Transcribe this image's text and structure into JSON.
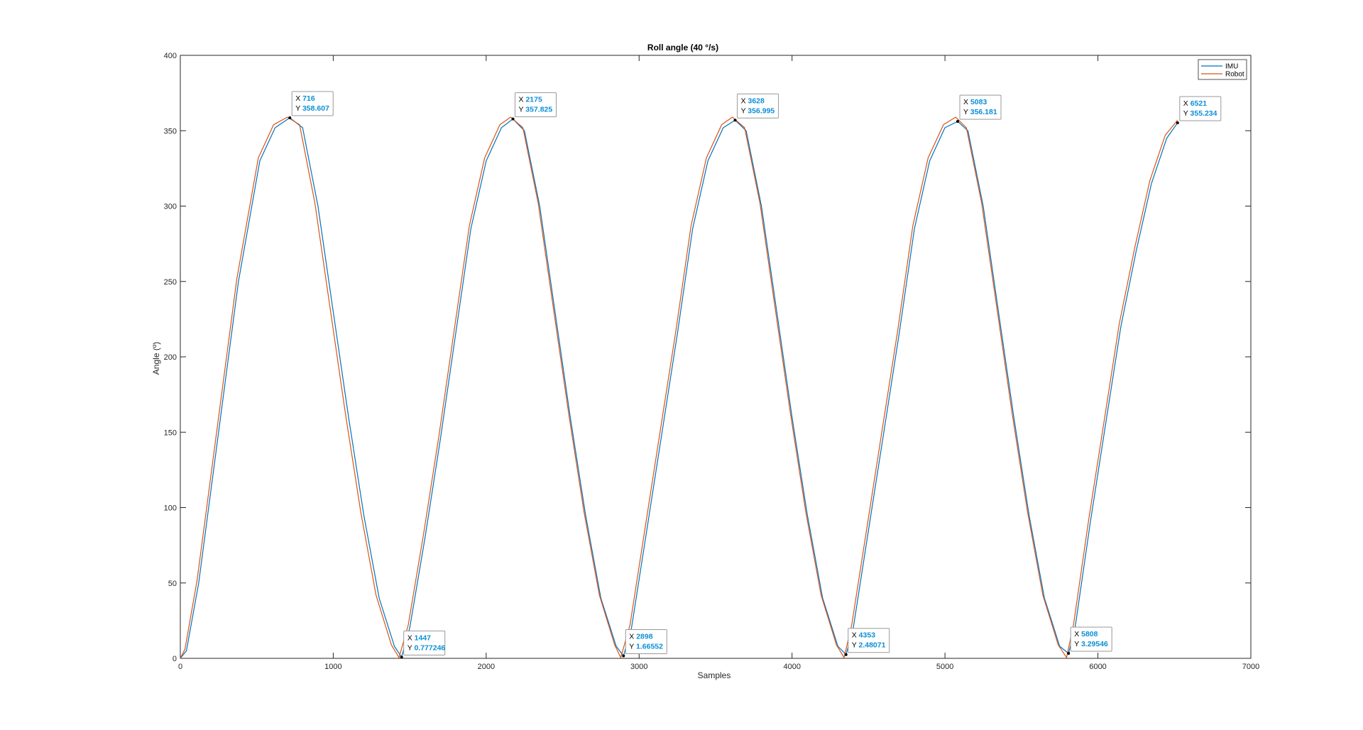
{
  "chart_data": {
    "type": "line",
    "title": "Roll angle (40 °/s)",
    "xlabel": "Samples",
    "ylabel": "Angle (º)",
    "xlim": [
      0,
      7000
    ],
    "ylim": [
      0,
      400
    ],
    "xticks": [
      0,
      1000,
      2000,
      3000,
      4000,
      5000,
      6000,
      7000
    ],
    "yticks": [
      0,
      50,
      100,
      150,
      200,
      250,
      300,
      350,
      400
    ],
    "grid": false,
    "legend_position": "top-right",
    "series": [
      {
        "name": "IMU",
        "color": "#0072BD",
        "points": [
          [
            0,
            0
          ],
          [
            40,
            5
          ],
          [
            120,
            50
          ],
          [
            250,
            150
          ],
          [
            380,
            250
          ],
          [
            520,
            330
          ],
          [
            620,
            352
          ],
          [
            716,
            358.6
          ],
          [
            800,
            352
          ],
          [
            900,
            300
          ],
          [
            1000,
            230
          ],
          [
            1100,
            160
          ],
          [
            1200,
            95
          ],
          [
            1300,
            40
          ],
          [
            1400,
            8
          ],
          [
            1447,
            0.78
          ],
          [
            1500,
            20
          ],
          [
            1600,
            80
          ],
          [
            1700,
            145
          ],
          [
            1800,
            215
          ],
          [
            1900,
            285
          ],
          [
            2000,
            330
          ],
          [
            2100,
            352
          ],
          [
            2175,
            357.8
          ],
          [
            2250,
            350
          ],
          [
            2350,
            300
          ],
          [
            2450,
            230
          ],
          [
            2550,
            160
          ],
          [
            2650,
            95
          ],
          [
            2750,
            40
          ],
          [
            2850,
            8
          ],
          [
            2898,
            1.67
          ],
          [
            2950,
            20
          ],
          [
            3050,
            85
          ],
          [
            3150,
            150
          ],
          [
            3250,
            215
          ],
          [
            3350,
            285
          ],
          [
            3450,
            330
          ],
          [
            3550,
            352
          ],
          [
            3628,
            357
          ],
          [
            3700,
            350
          ],
          [
            3800,
            300
          ],
          [
            3900,
            230
          ],
          [
            4000,
            160
          ],
          [
            4100,
            95
          ],
          [
            4200,
            40
          ],
          [
            4300,
            8
          ],
          [
            4353,
            2.48
          ],
          [
            4400,
            20
          ],
          [
            4500,
            85
          ],
          [
            4600,
            150
          ],
          [
            4700,
            215
          ],
          [
            4800,
            285
          ],
          [
            4900,
            330
          ],
          [
            5000,
            352
          ],
          [
            5083,
            356.2
          ],
          [
            5150,
            350
          ],
          [
            5250,
            300
          ],
          [
            5350,
            230
          ],
          [
            5450,
            160
          ],
          [
            5550,
            95
          ],
          [
            5650,
            40
          ],
          [
            5750,
            8
          ],
          [
            5808,
            3.3
          ],
          [
            5850,
            20
          ],
          [
            5950,
            90
          ],
          [
            6050,
            155
          ],
          [
            6150,
            220
          ],
          [
            6250,
            270
          ],
          [
            6350,
            315
          ],
          [
            6450,
            345
          ],
          [
            6521,
            355.2
          ]
        ]
      },
      {
        "name": "Robot",
        "color": "#D95319",
        "points": [
          [
            0,
            0
          ],
          [
            30,
            6
          ],
          [
            110,
            52
          ],
          [
            240,
            152
          ],
          [
            370,
            252
          ],
          [
            510,
            332
          ],
          [
            610,
            354
          ],
          [
            700,
            359
          ],
          [
            780,
            354
          ],
          [
            880,
            302
          ],
          [
            980,
            232
          ],
          [
            1080,
            162
          ],
          [
            1180,
            97
          ],
          [
            1280,
            42
          ],
          [
            1380,
            9
          ],
          [
            1430,
            0.5
          ],
          [
            1490,
            22
          ],
          [
            1590,
            82
          ],
          [
            1690,
            147
          ],
          [
            1790,
            217
          ],
          [
            1890,
            287
          ],
          [
            1990,
            332
          ],
          [
            2090,
            354
          ],
          [
            2160,
            359
          ],
          [
            2240,
            352
          ],
          [
            2340,
            302
          ],
          [
            2440,
            232
          ],
          [
            2540,
            162
          ],
          [
            2640,
            97
          ],
          [
            2740,
            42
          ],
          [
            2840,
            9
          ],
          [
            2880,
            0.5
          ],
          [
            2940,
            22
          ],
          [
            3040,
            87
          ],
          [
            3140,
            152
          ],
          [
            3240,
            217
          ],
          [
            3340,
            287
          ],
          [
            3440,
            332
          ],
          [
            3540,
            354
          ],
          [
            3610,
            359
          ],
          [
            3690,
            352
          ],
          [
            3790,
            302
          ],
          [
            3890,
            232
          ],
          [
            3990,
            162
          ],
          [
            4090,
            97
          ],
          [
            4190,
            42
          ],
          [
            4290,
            9
          ],
          [
            4340,
            0.5
          ],
          [
            4390,
            22
          ],
          [
            4490,
            87
          ],
          [
            4590,
            152
          ],
          [
            4690,
            217
          ],
          [
            4790,
            287
          ],
          [
            4890,
            332
          ],
          [
            4990,
            354
          ],
          [
            5070,
            359
          ],
          [
            5140,
            352
          ],
          [
            5240,
            302
          ],
          [
            5340,
            232
          ],
          [
            5440,
            162
          ],
          [
            5540,
            97
          ],
          [
            5640,
            42
          ],
          [
            5740,
            9
          ],
          [
            5795,
            0.5
          ],
          [
            5840,
            22
          ],
          [
            5940,
            92
          ],
          [
            6040,
            157
          ],
          [
            6140,
            222
          ],
          [
            6240,
            272
          ],
          [
            6340,
            317
          ],
          [
            6440,
            347
          ],
          [
            6521,
            357
          ]
        ]
      }
    ],
    "datatips": [
      {
        "x": 716,
        "y": 358.607
      },
      {
        "x": 1447,
        "y": 0.777246
      },
      {
        "x": 2175,
        "y": 357.825
      },
      {
        "x": 2898,
        "y": 1.66552
      },
      {
        "x": 3628,
        "y": 356.995
      },
      {
        "x": 4353,
        "y": 2.48071
      },
      {
        "x": 5083,
        "y": 356.181
      },
      {
        "x": 5808,
        "y": 3.29546
      },
      {
        "x": 6521,
        "y": 355.234
      }
    ],
    "datatip_labels": {
      "x": "X",
      "y": "Y"
    }
  }
}
